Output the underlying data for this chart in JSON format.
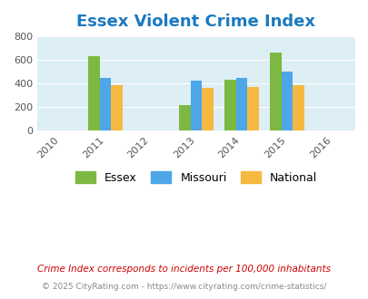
{
  "title": "Essex Violent Crime Index",
  "title_color": "#1a7abf",
  "years": [
    2010,
    2011,
    2012,
    2013,
    2014,
    2015,
    2016
  ],
  "data_years": [
    2011,
    2013,
    2014,
    2015
  ],
  "essex": [
    635,
    220,
    435,
    660
  ],
  "missouri": [
    450,
    425,
    445,
    505
  ],
  "national": [
    385,
    365,
    375,
    385
  ],
  "essex_color": "#7db942",
  "missouri_color": "#4da6e8",
  "national_color": "#f5b942",
  "bg_color": "#ddeef5",
  "ylim": [
    0,
    800
  ],
  "yticks": [
    0,
    200,
    400,
    600,
    800
  ],
  "bar_width": 0.25,
  "legend_labels": [
    "Essex",
    "Missouri",
    "National"
  ],
  "footnote1": "Crime Index corresponds to incidents per 100,000 inhabitants",
  "footnote2": "© 2025 CityRating.com - https://www.cityrating.com/crime-statistics/",
  "footnote1_color": "#cc0000",
  "footnote2_color": "#888888"
}
